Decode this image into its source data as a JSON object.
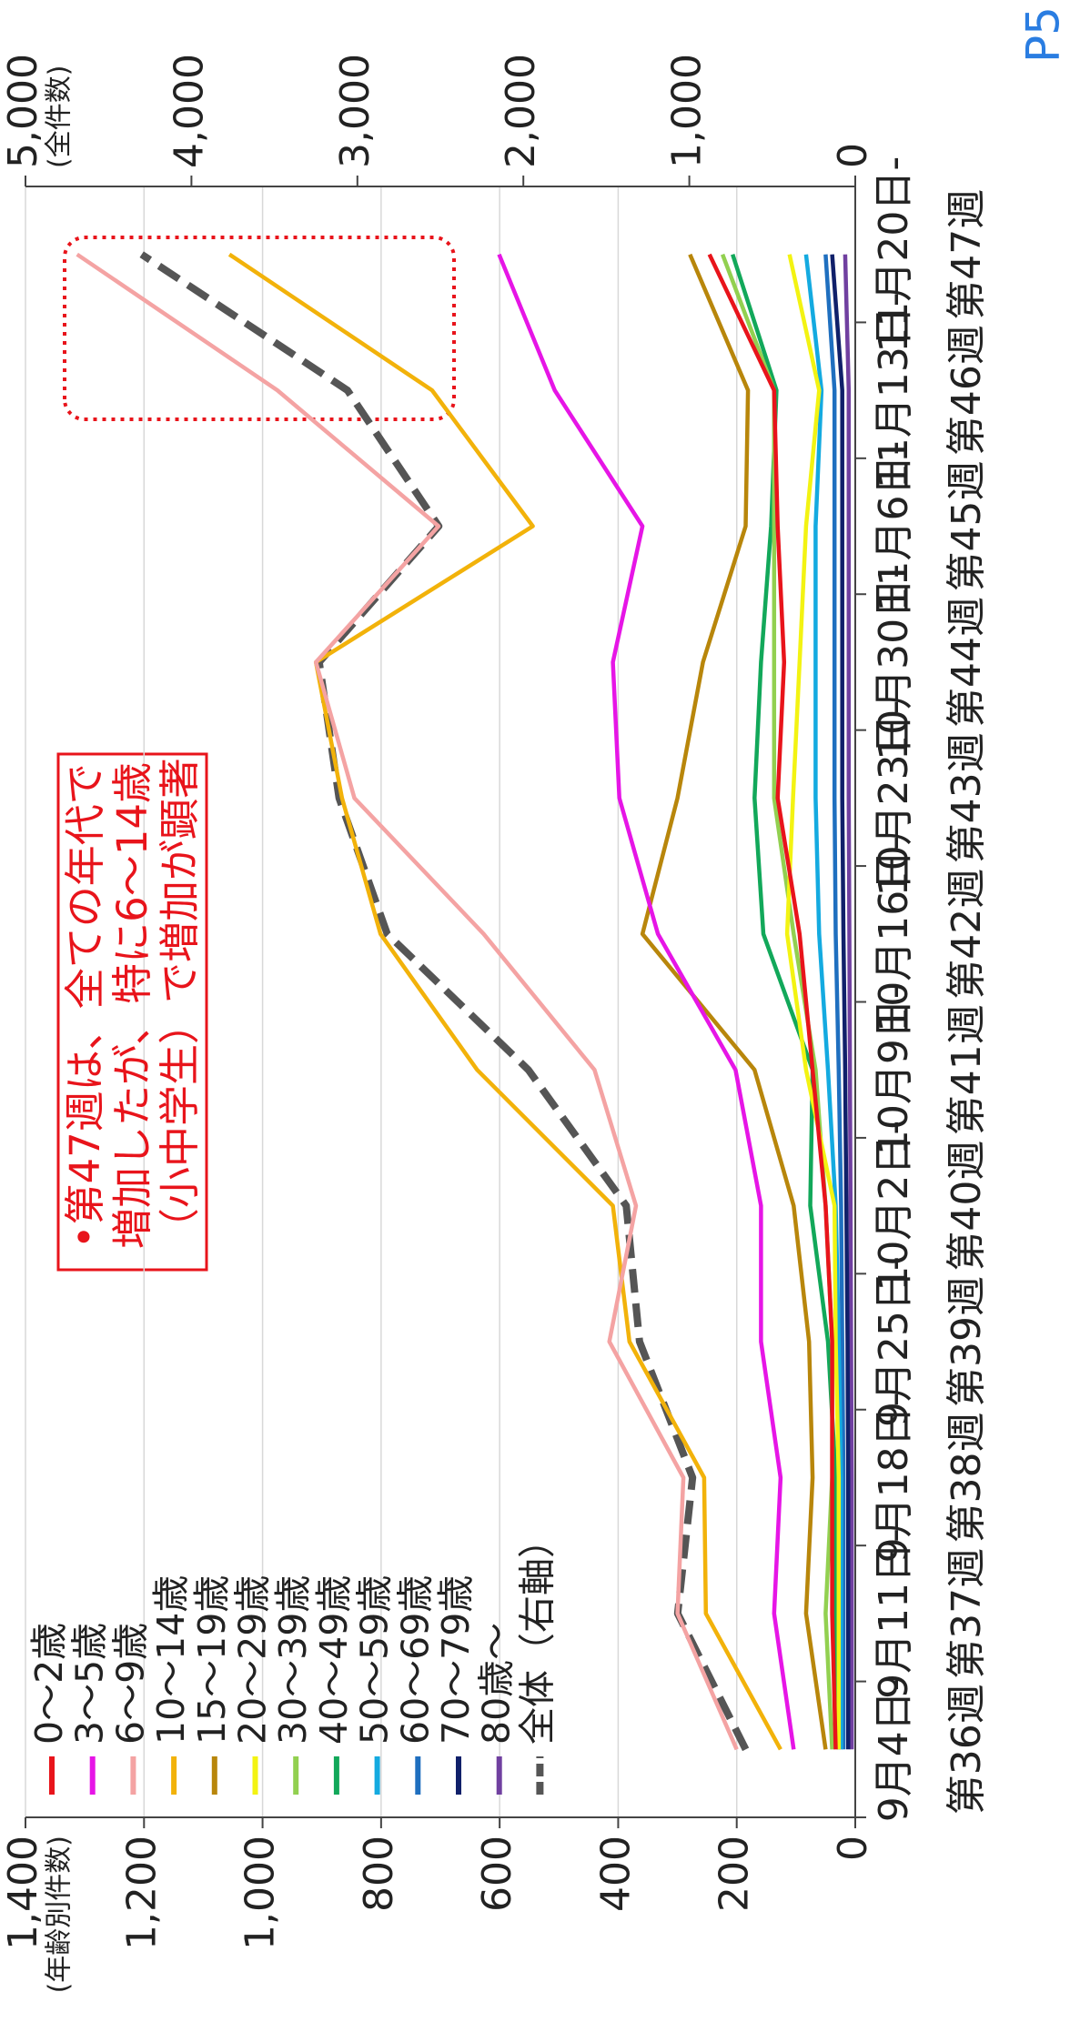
{
  "page_number": "P5",
  "chart_data": {
    "type": "line",
    "y_label": "(年齢別件数)",
    "y2_label": "(全件数)",
    "annotation": [
      "•第47週は、全ての年代で",
      "増加したが、特に6～14歳",
      "（小中学生）で増加が顕著"
    ],
    "categories": [
      "9月4日-第36週",
      "9月11日-第37週",
      "9月18日-第38週",
      "9月25日-第39週",
      "10月2日-第40週",
      "10月9日-第41週",
      "10月16日-第42週",
      "10月23日-第43週",
      "10月30日-第44週",
      "11月6日-第45週",
      "11月13日-第46週",
      "11月20日-第47週"
    ],
    "ylim": [
      0,
      1400
    ],
    "yticks": [
      0,
      200,
      400,
      600,
      800,
      {
        "value": 1000,
        "label": "1,000"
      },
      {
        "value": 1200,
        "label": "1,200"
      },
      {
        "value": 1400,
        "label": "1,400"
      }
    ],
    "y2lim": [
      0,
      5000
    ],
    "y2ticks": [
      0,
      {
        "value": 1000,
        "label": "1,000"
      },
      {
        "value": 2000,
        "label": "2,000"
      },
      {
        "value": 3000,
        "label": "3,000"
      },
      {
        "value": 4000,
        "label": "4,000"
      },
      {
        "value": 5000,
        "label": "5,000"
      }
    ],
    "grid": true,
    "series": [
      {
        "name": "0～2歳",
        "color": "#e8141b",
        "values": [
          33,
          39,
          39,
          39,
          50,
          72,
          94,
          131,
          120,
          131,
          137,
          246
        ]
      },
      {
        "name": "3～5歳",
        "color": "#e615e6",
        "values": [
          104,
          137,
          126,
          159,
          159,
          202,
          333,
          398,
          409,
          359,
          507,
          601
        ]
      },
      {
        "name": "6～9歳",
        "color": "#f4a3a3",
        "values": [
          200,
          300,
          290,
          415,
          370,
          440,
          627,
          845,
          910,
          703,
          975,
          1313
        ]
      },
      {
        "name": "10～14歳",
        "color": "#f2b20a",
        "values": [
          126,
          252,
          255,
          381,
          409,
          638,
          801,
          866,
          910,
          544,
          714,
          1056
        ]
      },
      {
        "name": "15～19歳",
        "color": "#b8860b",
        "values": [
          50,
          83,
          72,
          78,
          104,
          170,
          359,
          300,
          257,
          185,
          181,
          279
        ]
      },
      {
        "name": "20～29歳",
        "color": "#f3f312",
        "values": [
          28,
          28,
          28,
          33,
          35,
          83,
          115,
          105,
          94,
          83,
          61,
          111
        ]
      },
      {
        "name": "30～39歳",
        "color": "#92d050",
        "values": [
          39,
          50,
          39,
          39,
          50,
          67,
          104,
          137,
          137,
          137,
          137,
          224
        ]
      },
      {
        "name": "40～49歳",
        "color": "#12a85a",
        "values": [
          28,
          33,
          33,
          46,
          76,
          72,
          155,
          170,
          159,
          142,
          133,
          207
        ]
      },
      {
        "name": "50～59歳",
        "color": "#14aae0",
        "values": [
          24,
          24,
          24,
          28,
          33,
          46,
          61,
          67,
          67,
          67,
          57,
          83
        ]
      },
      {
        "name": "60～69歳",
        "color": "#1f6fbf",
        "values": [
          20,
          20,
          20,
          22,
          24,
          28,
          33,
          35,
          35,
          35,
          35,
          50
        ]
      },
      {
        "name": "70～79歳",
        "color": "#10206a",
        "values": [
          12,
          12,
          12,
          13,
          15,
          17,
          20,
          22,
          22,
          22,
          22,
          39
        ]
      },
      {
        "name": "80歳～",
        "color": "#7040a0",
        "values": [
          6,
          6,
          6,
          7,
          8,
          9,
          10,
          11,
          11,
          11,
          11,
          17
        ]
      },
      {
        "name": "全体（右軸）",
        "color": "#555555",
        "dashed": true,
        "axis": "y2",
        "values": [
          660,
          1070,
          980,
          1300,
          1380,
          1970,
          2820,
          3110,
          3230,
          2510,
          3060,
          4300
        ]
      }
    ]
  }
}
